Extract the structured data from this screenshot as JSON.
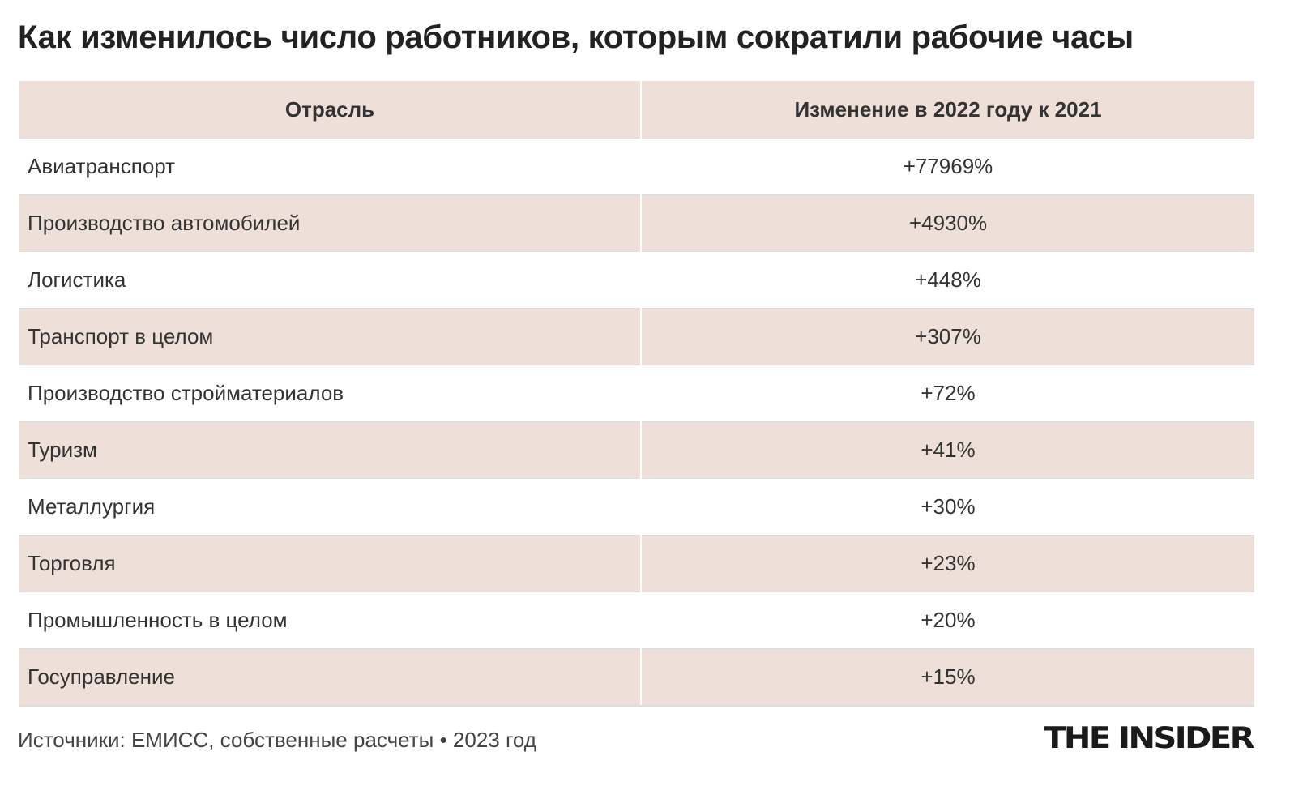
{
  "title": "Как изменилось число работников, которым сократили рабочие часы",
  "chart_data": {
    "type": "table",
    "columns": [
      "Отрасль",
      "Изменение в 2022 году к 2021"
    ],
    "rows": [
      [
        "Авиатранспорт",
        "+77969%"
      ],
      [
        "Производство автомобилей",
        "+4930%"
      ],
      [
        "Логистика",
        "+448%"
      ],
      [
        "Транспорт в целом",
        "+307%"
      ],
      [
        "Производство стройматериалов",
        "+72%"
      ],
      [
        "Туризм",
        "+41%"
      ],
      [
        "Металлургия",
        "+30%"
      ],
      [
        "Торговля",
        "+23%"
      ],
      [
        "Промышленность в целом",
        "+20%"
      ],
      [
        "Госуправление",
        "+15%"
      ]
    ],
    "colors": {
      "header_bg": "#eee0d8",
      "stripe_bg": "#eee0d8"
    }
  },
  "footer": "Источники: ЕМИСС, собственные расчеты • 2023 год",
  "logo": "THE INSIDER"
}
